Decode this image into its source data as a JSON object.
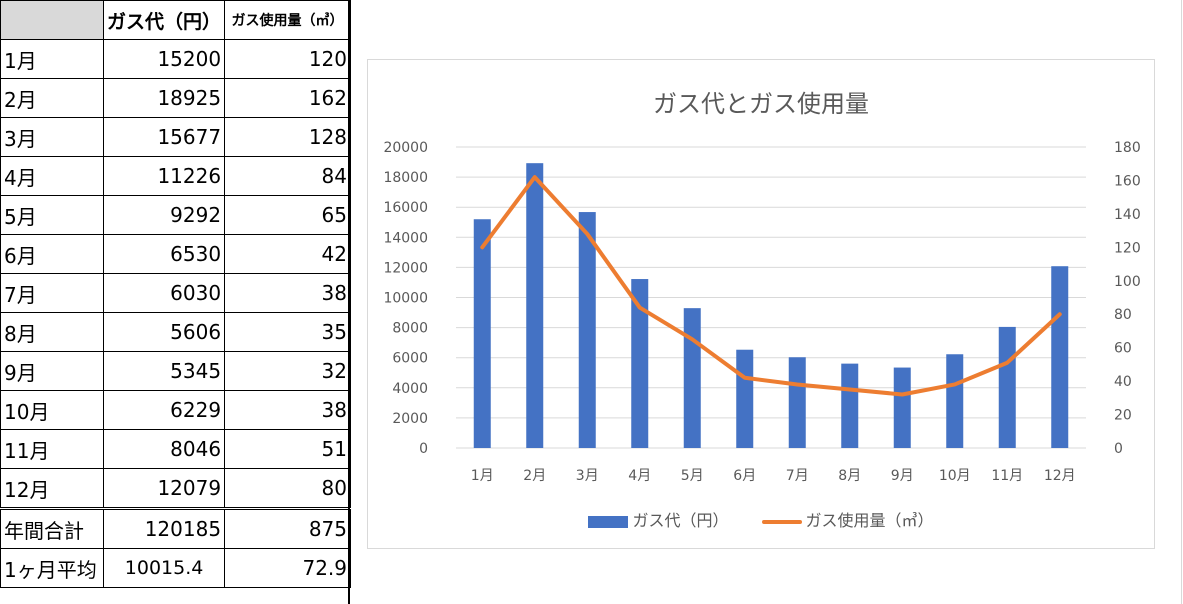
{
  "sheet": {
    "header": {
      "label": "",
      "col1": "ガス代（円）",
      "col2": "ガス使用量（㎥）"
    },
    "rows": [
      {
        "label": "1月",
        "cost": "15200",
        "usage": "120"
      },
      {
        "label": "2月",
        "cost": "18925",
        "usage": "162"
      },
      {
        "label": "3月",
        "cost": "15677",
        "usage": "128"
      },
      {
        "label": "4月",
        "cost": "11226",
        "usage": "84"
      },
      {
        "label": "5月",
        "cost": "9292",
        "usage": "65"
      },
      {
        "label": "6月",
        "cost": "6530",
        "usage": "42"
      },
      {
        "label": "7月",
        "cost": "6030",
        "usage": "38"
      },
      {
        "label": "8月",
        "cost": "5606",
        "usage": "35"
      },
      {
        "label": "9月",
        "cost": "5345",
        "usage": "32"
      },
      {
        "label": "10月",
        "cost": "6229",
        "usage": "38"
      },
      {
        "label": "11月",
        "cost": "8046",
        "usage": "51"
      },
      {
        "label": "12月",
        "cost": "12079",
        "usage": "80"
      }
    ],
    "total": {
      "label": "年間合計",
      "cost": "120185",
      "usage": "875"
    },
    "average": {
      "label": "1ヶ月平均",
      "cost": "10015.4",
      "usage": "72.9"
    }
  },
  "chart_data": {
    "type": "bar",
    "title": "ガス代とガス使用量",
    "categories": [
      "1月",
      "2月",
      "3月",
      "4月",
      "5月",
      "6月",
      "7月",
      "8月",
      "9月",
      "10月",
      "11月",
      "12月"
    ],
    "series": [
      {
        "name": "ガス代（円）",
        "type": "bar",
        "axis": "left",
        "color": "#4472c4",
        "values": [
          15200,
          18925,
          15677,
          11226,
          9292,
          6530,
          6030,
          5606,
          5345,
          6229,
          8046,
          12079
        ]
      },
      {
        "name": "ガス使用量（㎥）",
        "type": "line",
        "axis": "right",
        "color": "#ed7d31",
        "values": [
          120,
          162,
          128,
          84,
          65,
          42,
          38,
          35,
          32,
          38,
          51,
          80
        ]
      }
    ],
    "ylim_left": [
      0,
      20000
    ],
    "yticks_left": [
      "0",
      "2000",
      "4000",
      "6000",
      "8000",
      "10000",
      "12000",
      "14000",
      "16000",
      "18000",
      "20000"
    ],
    "ylim_right": [
      0,
      180
    ],
    "yticks_right": [
      "0",
      "20",
      "40",
      "60",
      "80",
      "100",
      "120",
      "140",
      "160",
      "180"
    ],
    "grid": true,
    "legend": "bottom"
  }
}
